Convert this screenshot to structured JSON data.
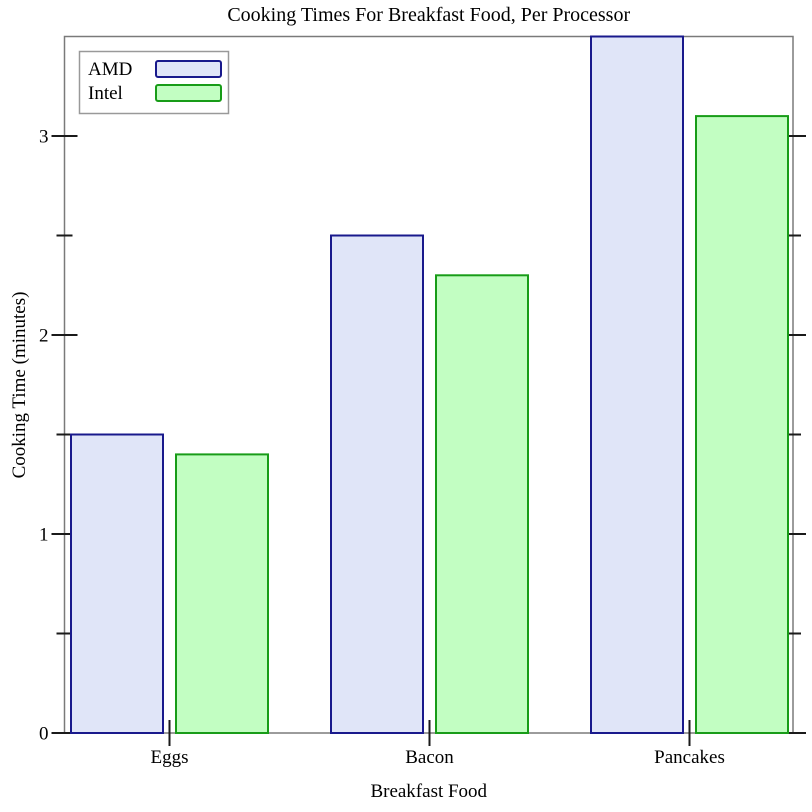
{
  "chart_data": {
    "type": "bar",
    "title": "Cooking Times For Breakfast Food, Per Processor",
    "xlabel": "Breakfast Food",
    "ylabel": "Cooking Time (minutes)",
    "categories": [
      "Eggs",
      "Bacon",
      "Pancakes"
    ],
    "series": [
      {
        "name": "AMD",
        "values": [
          1.5,
          2.5,
          3.5
        ],
        "fill": "#e0e5f8",
        "stroke": "#19198c"
      },
      {
        "name": "Intel",
        "values": [
          1.4,
          2.3,
          3.1
        ],
        "fill": "#c2fec2",
        "stroke": "#189c18"
      }
    ],
    "ylim": [
      0,
      3.5
    ],
    "yticks_major": [
      0,
      1,
      2,
      3
    ],
    "yticks_minor": [
      0.5,
      1.5,
      2.5
    ],
    "grid": false,
    "legend_position": "top-left",
    "frame_color": "#7a7a7a",
    "tick_color": "#1a1a1a",
    "legend_border_color": "#999999",
    "background_color": "#ffffff"
  }
}
